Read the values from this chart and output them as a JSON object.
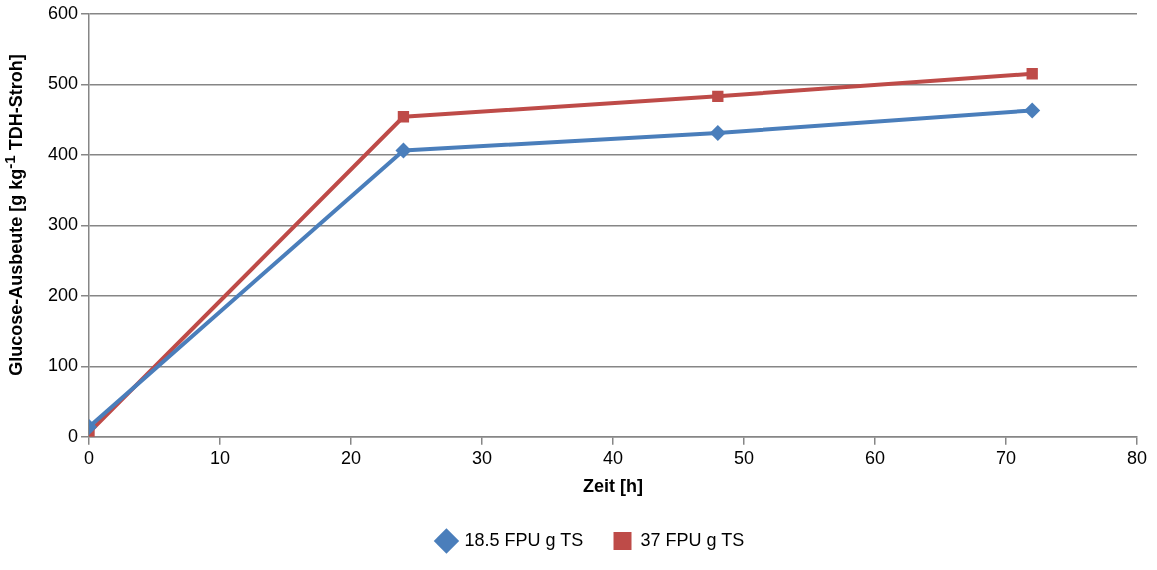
{
  "chart_data": {
    "type": "line",
    "xlabel": "Zeit [h]",
    "ylabel": "Glucose-Ausbeute [g kg$^{-1}$ TDH-Stroh]",
    "x": [
      0,
      24,
      48,
      72
    ],
    "series": [
      {
        "name": "18.5 FPU g TS",
        "color": "#4a7ebb",
        "marker": "diamond",
        "values": [
          14,
          406,
          431,
          463
        ]
      },
      {
        "name": "37 FPU g TS",
        "color": "#be4b48",
        "marker": "square",
        "values": [
          6,
          454,
          483,
          515
        ]
      }
    ],
    "xlim": [
      0,
      80
    ],
    "xticks": [
      0,
      10,
      20,
      30,
      40,
      50,
      60,
      70,
      80
    ],
    "ylim": [
      0,
      600
    ],
    "yticks": [
      0,
      100,
      200,
      300,
      400,
      500,
      600
    ],
    "grid": "y",
    "legend": "bottom",
    "line_style": "solid"
  }
}
